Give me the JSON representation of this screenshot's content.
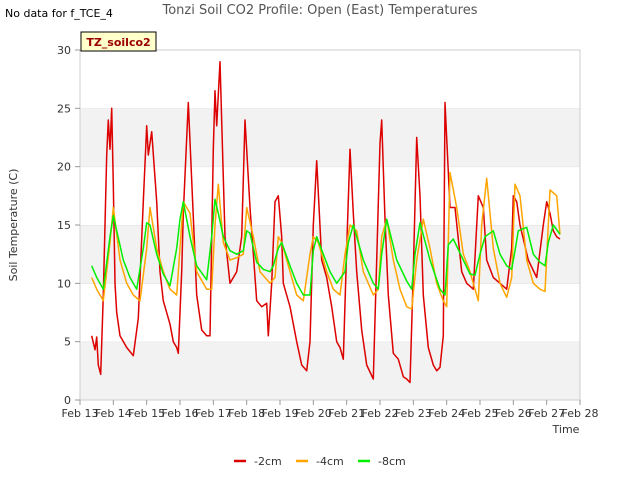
{
  "no_data_text": "No data for f_TCE_4",
  "legend_box_label": "TZ_soilco2",
  "chart_data": {
    "type": "line",
    "title": "Tonzi Soil CO2 Profile: Open (East) Temperatures",
    "xlabel": "Time",
    "ylabel": "Soil Temperature (C)",
    "xlim": [
      13,
      28
    ],
    "ylim": [
      0,
      30
    ],
    "x_ticks": [
      13,
      14,
      15,
      16,
      17,
      18,
      19,
      20,
      21,
      22,
      23,
      24,
      25,
      26,
      27,
      28
    ],
    "x_tick_labels": [
      "Feb 13",
      "Feb 14",
      "Feb 15",
      "Feb 16",
      "Feb 17",
      "Feb 18",
      "Feb 19",
      "Feb 20",
      "Feb 21",
      "Feb 22",
      "Feb 23",
      "Feb 24",
      "Feb 25",
      "Feb 26",
      "Feb 27",
      "Feb 28"
    ],
    "y_ticks": [
      0,
      5,
      10,
      15,
      20,
      25,
      30
    ],
    "y_tick_labels": [
      "0",
      "5",
      "10",
      "15",
      "20",
      "25",
      "30"
    ],
    "series": [
      {
        "name": "-2cm",
        "color": "#dd0000",
        "x": [
          13.35,
          13.45,
          13.5,
          13.55,
          13.62,
          13.7,
          13.8,
          13.85,
          13.9,
          13.95,
          14.0,
          14.05,
          14.1,
          14.2,
          14.4,
          14.6,
          14.75,
          14.9,
          15.0,
          15.05,
          15.15,
          15.3,
          15.4,
          15.5,
          15.7,
          15.8,
          15.9,
          15.95,
          16.05,
          16.1,
          16.25,
          16.5,
          16.65,
          16.8,
          16.9,
          17.0,
          17.05,
          17.1,
          17.2,
          17.35,
          17.5,
          17.7,
          17.85,
          17.95,
          18.1,
          18.3,
          18.45,
          18.6,
          18.65,
          18.75,
          18.85,
          18.95,
          19.05,
          19.1,
          19.3,
          19.5,
          19.65,
          19.8,
          19.9,
          20.0,
          20.1,
          20.25,
          20.4,
          20.55,
          20.7,
          20.8,
          20.9,
          21.0,
          21.1,
          21.2,
          21.3,
          21.45,
          21.6,
          21.8,
          21.9,
          22.0,
          22.05,
          22.15,
          22.25,
          22.4,
          22.55,
          22.7,
          22.8,
          22.9,
          23.0,
          23.1,
          23.2,
          23.3,
          23.45,
          23.6,
          23.7,
          23.8,
          23.9,
          23.95,
          24.1,
          24.25,
          24.45,
          24.6,
          24.8,
          24.95,
          25.1,
          25.2,
          25.4,
          25.6,
          25.8,
          25.95,
          26.0,
          26.1,
          26.2,
          26.45,
          26.7,
          26.9,
          27.0,
          27.1,
          27.2,
          27.3,
          27.4
        ],
        "y": [
          5.5,
          4.3,
          5.4,
          3.0,
          2.2,
          9.0,
          21.0,
          24.0,
          21.5,
          25.0,
          18.5,
          10.0,
          7.5,
          5.5,
          4.5,
          3.8,
          7.0,
          17.0,
          23.5,
          21.0,
          23.0,
          17.0,
          11.0,
          8.5,
          6.5,
          5.0,
          4.5,
          4.0,
          11.0,
          16.0,
          25.5,
          9.0,
          6.0,
          5.5,
          5.5,
          21.5,
          26.5,
          23.5,
          29.0,
          14.0,
          10.0,
          11.0,
          14.0,
          24.0,
          16.5,
          8.5,
          8.0,
          8.3,
          5.5,
          10.0,
          17.0,
          17.5,
          14.0,
          10.0,
          8.0,
          5.0,
          3.0,
          2.5,
          5.0,
          15.0,
          20.5,
          12.0,
          10.5,
          8.0,
          5.0,
          4.5,
          3.5,
          13.0,
          21.5,
          16.0,
          11.0,
          6.0,
          3.0,
          1.8,
          12.0,
          22.0,
          24.0,
          15.5,
          9.0,
          4.0,
          3.5,
          2.0,
          1.8,
          1.5,
          11.0,
          22.5,
          17.5,
          9.0,
          4.5,
          3.0,
          2.5,
          2.8,
          5.5,
          25.5,
          16.5,
          16.5,
          11.0,
          10.0,
          9.5,
          17.5,
          16.5,
          12.0,
          10.5,
          10.0,
          9.5,
          13.0,
          17.5,
          17.0,
          15.0,
          12.0,
          10.5,
          15.0,
          17.0,
          16.0,
          14.5,
          14.0,
          13.8
        ]
      },
      {
        "name": "-4cm",
        "color": "#ffa500",
        "x": [
          13.35,
          13.5,
          13.7,
          13.9,
          14.0,
          14.2,
          14.4,
          14.6,
          14.8,
          15.0,
          15.1,
          15.3,
          15.5,
          15.7,
          15.9,
          16.0,
          16.1,
          16.3,
          16.5,
          16.8,
          16.95,
          17.05,
          17.15,
          17.3,
          17.5,
          17.7,
          17.9,
          18.0,
          18.2,
          18.4,
          18.7,
          18.85,
          18.95,
          19.05,
          19.3,
          19.5,
          19.7,
          19.9,
          20.0,
          20.15,
          20.4,
          20.6,
          20.8,
          20.95,
          21.1,
          21.3,
          21.5,
          21.8,
          21.95,
          22.05,
          22.2,
          22.4,
          22.6,
          22.8,
          22.95,
          23.1,
          23.3,
          23.5,
          23.7,
          23.9,
          24.0,
          24.1,
          24.3,
          24.5,
          24.7,
          24.8,
          24.95,
          25.05,
          25.2,
          25.4,
          25.6,
          25.8,
          25.95,
          26.05,
          26.2,
          26.4,
          26.6,
          26.8,
          26.95,
          27.1,
          27.3,
          27.4
        ],
        "y": [
          10.5,
          9.5,
          8.5,
          13.5,
          16.5,
          12.0,
          10.0,
          9.0,
          8.5,
          13.0,
          16.5,
          13.0,
          11.0,
          9.5,
          9.0,
          13.0,
          17.0,
          16.0,
          11.0,
          9.5,
          9.5,
          15.0,
          18.5,
          13.5,
          12.0,
          12.2,
          12.5,
          16.5,
          14.0,
          11.0,
          10.0,
          10.5,
          14.0,
          13.5,
          11.0,
          9.0,
          8.5,
          12.5,
          14.0,
          13.5,
          11.0,
          9.5,
          9.0,
          12.5,
          15.0,
          14.5,
          11.0,
          9.0,
          9.5,
          14.0,
          15.5,
          12.0,
          9.5,
          8.0,
          7.8,
          12.0,
          15.5,
          13.0,
          10.0,
          8.5,
          8.0,
          19.5,
          16.5,
          12.5,
          11.0,
          10.0,
          8.5,
          15.0,
          19.0,
          13.0,
          10.0,
          8.8,
          10.5,
          18.5,
          17.5,
          12.0,
          10.0,
          9.5,
          9.3,
          18.0,
          17.5,
          14.2
        ]
      },
      {
        "name": "-8cm",
        "color": "#00ee00",
        "x": [
          13.35,
          13.5,
          13.7,
          13.9,
          14.0,
          14.1,
          14.3,
          14.5,
          14.7,
          14.9,
          15.0,
          15.1,
          15.3,
          15.5,
          15.7,
          15.9,
          16.0,
          16.1,
          16.3,
          16.5,
          16.8,
          16.95,
          17.05,
          17.15,
          17.3,
          17.5,
          17.7,
          17.9,
          18.0,
          18.1,
          18.3,
          18.5,
          18.7,
          18.8,
          18.95,
          19.05,
          19.3,
          19.5,
          19.7,
          19.9,
          20.0,
          20.1,
          20.3,
          20.5,
          20.7,
          20.95,
          21.05,
          21.2,
          21.5,
          21.8,
          21.95,
          22.05,
          22.2,
          22.5,
          22.8,
          22.95,
          23.05,
          23.2,
          23.5,
          23.8,
          23.95,
          24.05,
          24.2,
          24.5,
          24.7,
          24.85,
          25.0,
          25.15,
          25.4,
          25.6,
          25.8,
          25.95,
          26.05,
          26.15,
          26.4,
          26.6,
          26.8,
          26.95,
          27.05,
          27.2,
          27.4
        ],
        "y": [
          11.5,
          10.5,
          9.5,
          14.0,
          15.8,
          14.5,
          12.0,
          10.5,
          9.5,
          13.0,
          15.2,
          15.0,
          12.5,
          10.8,
          9.8,
          13.0,
          15.5,
          17.0,
          14.0,
          11.5,
          10.3,
          14.0,
          17.2,
          16.0,
          14.0,
          12.8,
          12.5,
          12.8,
          14.5,
          14.3,
          11.8,
          11.2,
          11.0,
          11.5,
          13.0,
          13.5,
          11.5,
          10.0,
          9.0,
          9.0,
          12.8,
          14.0,
          12.5,
          11.0,
          10.0,
          11.0,
          13.5,
          15.0,
          12.0,
          10.0,
          9.5,
          12.5,
          15.5,
          12.0,
          10.2,
          9.5,
          12.5,
          15.2,
          12.0,
          9.5,
          9.0,
          13.3,
          13.8,
          12.0,
          10.8,
          10.7,
          12.5,
          14.0,
          14.5,
          12.5,
          11.5,
          11.2,
          12.8,
          14.5,
          14.8,
          12.5,
          11.8,
          11.5,
          13.5,
          15.0,
          14.2
        ]
      }
    ]
  }
}
